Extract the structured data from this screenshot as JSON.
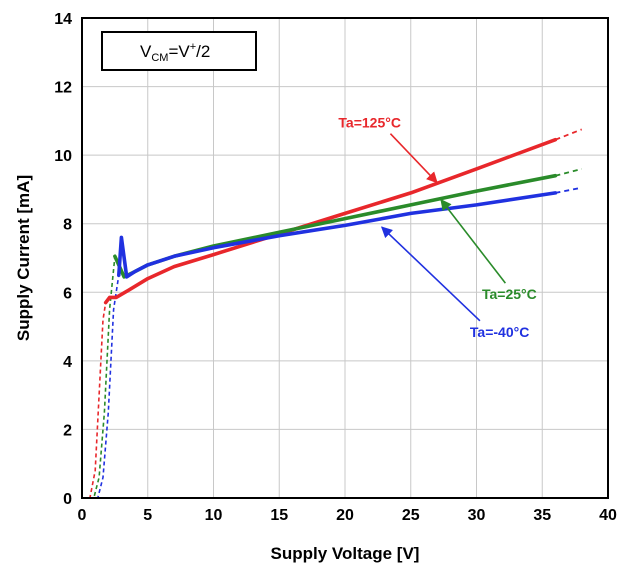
{
  "chart_data": {
    "type": "line",
    "condition_label": {
      "base": "V",
      "subscript": "CM",
      "rest1": "=V",
      "superscript": "+",
      "rest2": "/2"
    },
    "xlabel": "Supply Voltage [V]",
    "ylabel": "Supply Current [mA]",
    "xlim": [
      0,
      40
    ],
    "ylim": [
      0,
      14
    ],
    "xticks": [
      "0",
      "5",
      "10",
      "15",
      "20",
      "25",
      "30",
      "35",
      "40"
    ],
    "yticks": [
      "0",
      "2",
      "4",
      "6",
      "8",
      "10",
      "12",
      "14"
    ],
    "grid": true,
    "series": [
      {
        "name": "Ta=125°C",
        "color": "#e8272b",
        "solid": [
          [
            1.8,
            5.7
          ],
          [
            2.1,
            5.85
          ],
          [
            2.6,
            5.85
          ],
          [
            3.5,
            6.05
          ],
          [
            5,
            6.4
          ],
          [
            7,
            6.75
          ],
          [
            10,
            7.1
          ],
          [
            15,
            7.7
          ],
          [
            20,
            8.3
          ],
          [
            25,
            8.9
          ],
          [
            30,
            9.6
          ],
          [
            36,
            10.45
          ]
        ],
        "dashed": [
          [
            0,
            0
          ],
          [
            0.6,
            0
          ],
          [
            1.0,
            0.8
          ],
          [
            1.3,
            3.0
          ],
          [
            1.6,
            5.2
          ],
          [
            1.8,
            5.7
          ]
        ],
        "extension": [
          [
            36,
            10.45
          ],
          [
            38,
            10.75
          ]
        ]
      },
      {
        "name": "Ta=25°C",
        "color": "#2a8b2a",
        "solid": [
          [
            2.5,
            7.05
          ],
          [
            3.2,
            6.45
          ],
          [
            4,
            6.6
          ],
          [
            5,
            6.8
          ],
          [
            7,
            7.05
          ],
          [
            10,
            7.35
          ],
          [
            15,
            7.75
          ],
          [
            20,
            8.15
          ],
          [
            25,
            8.55
          ],
          [
            30,
            8.95
          ],
          [
            36,
            9.4
          ]
        ],
        "dashed": [
          [
            0,
            0
          ],
          [
            0.9,
            0
          ],
          [
            1.3,
            0.6
          ],
          [
            1.7,
            2.5
          ],
          [
            2.1,
            5.5
          ],
          [
            2.5,
            7.05
          ]
        ],
        "extension": [
          [
            36,
            9.4
          ],
          [
            38,
            9.6
          ]
        ]
      },
      {
        "name": "Ta=-40°C",
        "color": "#2031e0",
        "solid": [
          [
            2.8,
            6.5
          ],
          [
            3.0,
            7.6
          ],
          [
            3.4,
            6.45
          ],
          [
            4,
            6.6
          ],
          [
            5,
            6.8
          ],
          [
            7,
            7.05
          ],
          [
            10,
            7.3
          ],
          [
            15,
            7.65
          ],
          [
            20,
            7.95
          ],
          [
            25,
            8.3
          ],
          [
            30,
            8.55
          ],
          [
            36,
            8.9
          ]
        ],
        "dashed": [
          [
            0,
            0
          ],
          [
            1.2,
            0
          ],
          [
            1.6,
            0.6
          ],
          [
            2.0,
            2.5
          ],
          [
            2.4,
            5.5
          ],
          [
            2.8,
            6.5
          ]
        ],
        "extension": [
          [
            36,
            8.9
          ],
          [
            38,
            9.05
          ]
        ]
      }
    ],
    "annotations": [
      {
        "text": "Ta=125°C",
        "series": 0,
        "color": "#e8272b",
        "label_at": [
          19.5,
          10.8
        ],
        "arrow_to": [
          27,
          9.2
        ]
      },
      {
        "text": "Ta=25°C",
        "series": 1,
        "color": "#2a8b2a",
        "label_at": [
          32.5,
          5.8
        ],
        "arrow_to": [
          27.3,
          8.7
        ]
      },
      {
        "text": "Ta=-40°C",
        "series": 2,
        "color": "#2031e0",
        "label_at": [
          29.5,
          4.7
        ],
        "arrow_to": [
          22.8,
          7.9
        ]
      }
    ]
  }
}
